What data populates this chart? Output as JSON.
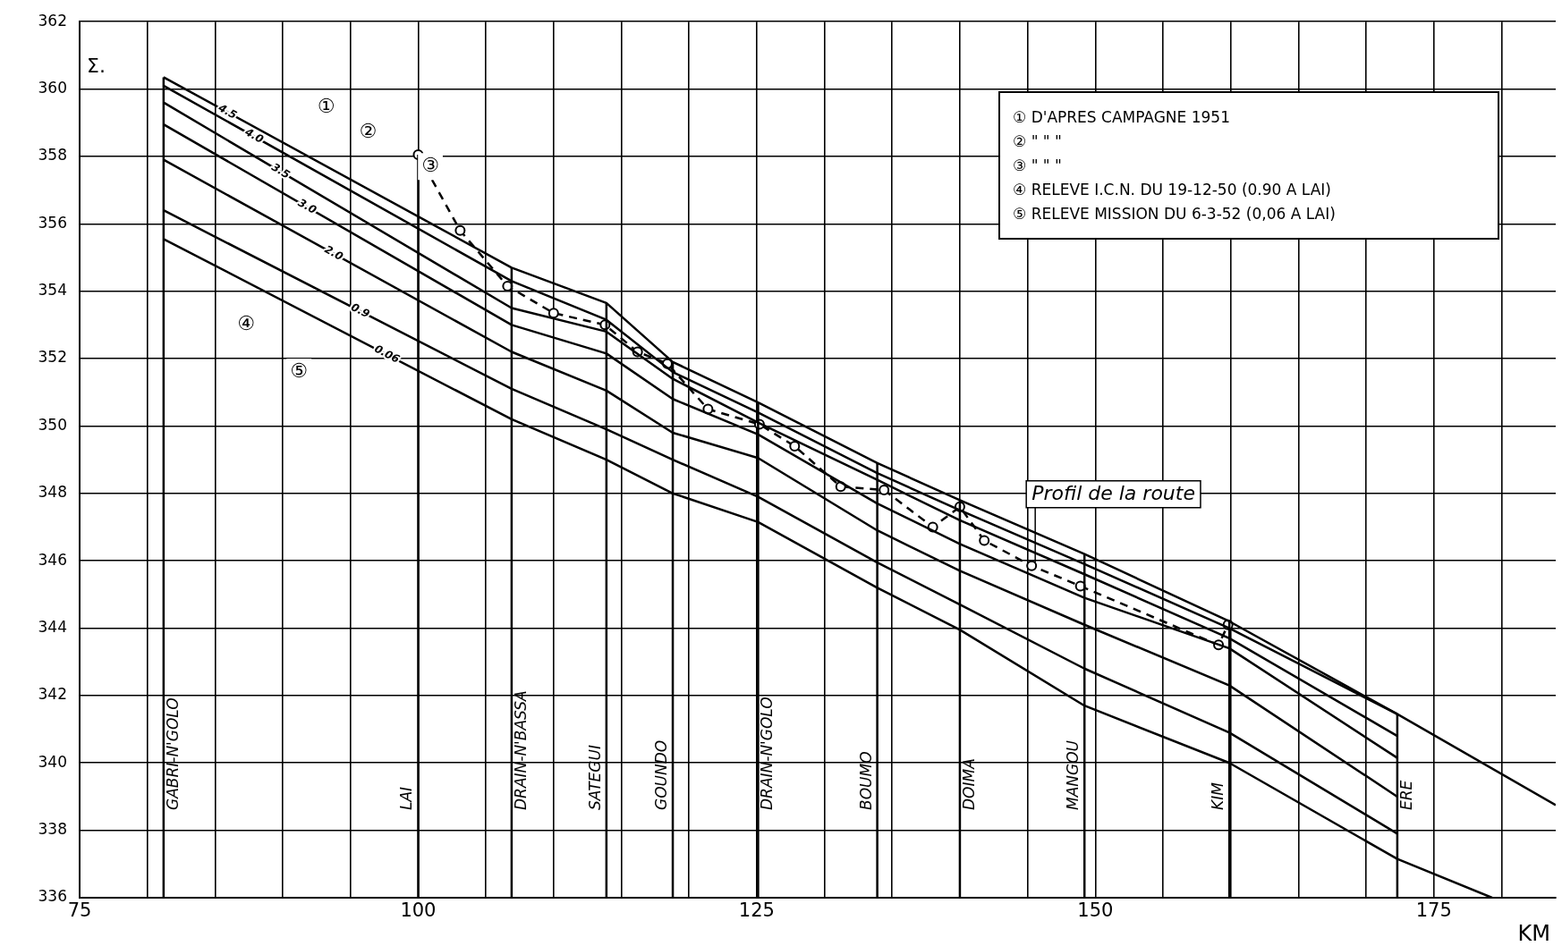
{
  "chart_data": {
    "type": "line",
    "xlabel": "KM",
    "ylabel": "Σ.",
    "xlim": [
      75,
      184
    ],
    "ylim": [
      336,
      362
    ],
    "xticks": [
      75,
      {
        "value": 80,
        "label": null
      },
      {
        "value": 85,
        "label": null
      },
      {
        "value": 90,
        "label": null
      },
      {
        "value": 95,
        "label": null
      },
      100,
      {
        "value": 105,
        "label": null
      },
      {
        "value": 110,
        "label": null
      },
      {
        "value": 115,
        "label": null
      },
      {
        "value": 120,
        "label": null
      },
      125,
      {
        "value": 130,
        "label": null
      },
      {
        "value": 135,
        "label": null
      },
      {
        "value": 140,
        "label": null
      },
      {
        "value": 145,
        "label": null
      },
      150,
      {
        "value": 155,
        "label": null
      },
      {
        "value": 160,
        "label": null
      },
      {
        "value": 165,
        "label": null
      },
      {
        "value": 170,
        "label": null
      },
      175,
      {
        "value": 180,
        "label": null
      }
    ],
    "yticks": [
      336,
      338,
      340,
      342,
      344,
      346,
      348,
      350,
      352,
      354,
      356,
      358,
      360,
      362
    ],
    "grid": true,
    "legend": false,
    "marker": "none",
    "series": [
      {
        "name": "4.5",
        "color": "#000000",
        "x": [
          81.2,
          106.9,
          113.9,
          118.8,
          125.1,
          133.9,
          140.0,
          149.2,
          159.9,
          172.3,
          184.0
        ],
        "values": [
          360.35,
          354.7,
          353.65,
          351.9,
          350.7,
          348.9,
          347.8,
          346.2,
          344.2,
          341.45,
          338.75
        ]
      },
      {
        "name": "4.0",
        "color": "#000000",
        "x": [
          81.2,
          106.9,
          113.9,
          118.8,
          125.1,
          133.9,
          140.0,
          149.2,
          159.9,
          172.3
        ],
        "values": [
          360.1,
          354.3,
          353.15,
          351.6,
          350.4,
          348.6,
          347.5,
          345.9,
          344.0,
          341.45
        ]
      },
      {
        "name": "3.5",
        "color": "#000000",
        "x": [
          81.2,
          106.9,
          113.9,
          118.8,
          125.1,
          133.9,
          140.0,
          149.2,
          159.9,
          172.3
        ],
        "values": [
          359.6,
          353.5,
          352.8,
          351.4,
          350.1,
          348.4,
          347.2,
          345.6,
          343.7,
          340.8
        ]
      },
      {
        "name": "3.0",
        "color": "#000000",
        "x": [
          81.2,
          106.9,
          113.9,
          118.8,
          125.1,
          133.9,
          140.0,
          149.2,
          159.9,
          172.3
        ],
        "values": [
          358.95,
          353.0,
          352.15,
          350.8,
          349.75,
          347.7,
          346.5,
          344.9,
          343.4,
          340.15
        ]
      },
      {
        "name": "2.0",
        "color": "#000000",
        "x": [
          81.2,
          106.9,
          113.9,
          118.8,
          125.1,
          133.9,
          140.0,
          149.2,
          159.9,
          172.3
        ],
        "values": [
          357.9,
          352.2,
          351.05,
          349.8,
          349.05,
          346.9,
          345.7,
          344.1,
          342.3,
          339.0
        ]
      },
      {
        "name": "0.9",
        "color": "#000000",
        "x": [
          81.2,
          106.9,
          113.9,
          118.8,
          125.1,
          133.9,
          140.0,
          149.2,
          159.9,
          172.3
        ],
        "values": [
          356.4,
          351.1,
          349.9,
          349.0,
          347.9,
          345.95,
          344.7,
          342.8,
          340.9,
          337.9
        ]
      },
      {
        "name": "0.06",
        "color": "#000000",
        "x": [
          81.2,
          106.9,
          113.9,
          118.8,
          125.1,
          133.9,
          140.0,
          149.2,
          159.9,
          172.3,
          179.3
        ],
        "values": [
          355.55,
          350.2,
          349.0,
          348.0,
          347.15,
          345.2,
          343.95,
          341.7,
          340.0,
          337.15,
          336.0
        ]
      },
      {
        "name": "Profil de la route",
        "color": "#000000",
        "marker": "circle",
        "line_style": "dashed",
        "x": [
          100.0,
          103.1,
          106.6,
          110.0,
          113.8,
          116.2,
          118.4,
          121.4,
          125.2,
          127.8,
          131.2,
          134.4,
          138.0,
          140.0,
          141.8,
          145.3,
          148.9,
          159.1,
          159.8
        ],
        "values": [
          358.05,
          355.8,
          354.15,
          353.35,
          353.0,
          352.2,
          351.85,
          350.5,
          350.05,
          349.4,
          348.2,
          348.1,
          347.0,
          347.6,
          346.6,
          345.85,
          345.25,
          343.5,
          344.1
        ]
      }
    ],
    "ref_lines": [
      {
        "axis": "x",
        "value": 81.2,
        "label": "GABRI-N'GOLO"
      },
      {
        "axis": "x",
        "value": 100.0,
        "label": "LAI"
      },
      {
        "axis": "x",
        "value": 106.9,
        "label": "DRAIN-N'BASSA"
      },
      {
        "axis": "x",
        "value": 113.9,
        "label": "SATEGUI"
      },
      {
        "axis": "x",
        "value": 118.8,
        "label": "GOUNDO"
      },
      {
        "axis": "x",
        "value": 125.1,
        "label": "DRAIN-N'GOLO"
      },
      {
        "axis": "x",
        "value": 133.9,
        "label": "BOUMO"
      },
      {
        "axis": "x",
        "value": 140.0,
        "label": "DOIMA"
      },
      {
        "axis": "x",
        "value": 149.2,
        "label": "MANGOU"
      },
      {
        "axis": "x",
        "value": 159.9,
        "label": "KIM"
      },
      {
        "axis": "x",
        "value": 172.3,
        "label": "ERE"
      }
    ],
    "annotations": [
      "① D'APRES CAMPAGNE 1951",
      "② \" \" \"",
      "③ \" \" \"",
      "④ RELEVE I.C.N. DU 19-12-50 (0.90 A LAI)",
      "⑤ RELEVE MISSION DU 6-3-52 (0,06 A LAI)",
      {
        "text": "①",
        "x": 93.2,
        "y": 359.45
      },
      {
        "text": "②",
        "x": 96.3,
        "y": 358.7
      },
      {
        "text": "③",
        "x": 100.9,
        "y": 357.7
      },
      {
        "text": "④",
        "x": 87.3,
        "y": 353.0
      },
      {
        "text": "⑤",
        "x": 91.2,
        "y": 351.6
      }
    ]
  }
}
